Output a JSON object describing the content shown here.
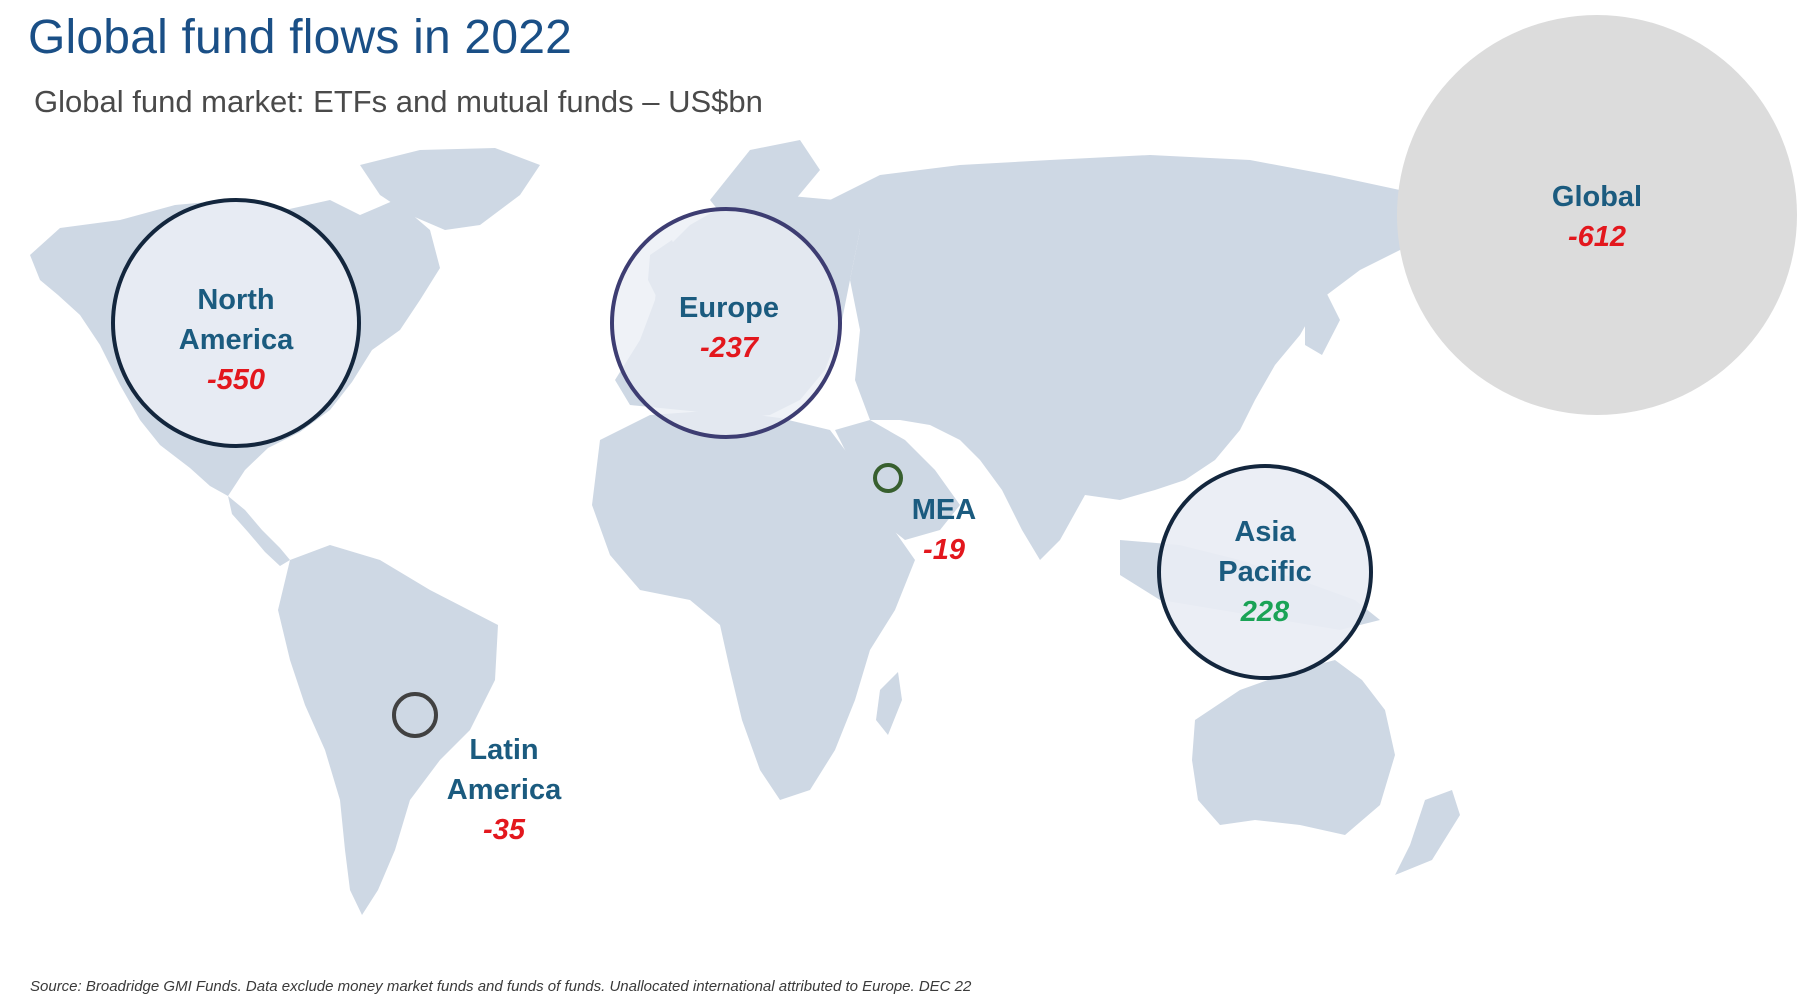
{
  "title": "Global fund flows in 2022",
  "subtitle": "Global fund market: ETFs and mutual funds – US$bn",
  "colors": {
    "title": "#1a4f86",
    "land": "#ced8e4",
    "region_name": "#1b5b7f",
    "negative": "#e3171d",
    "positive": "#1aa356",
    "global_bubble": "#dcdcdc"
  },
  "regions": [
    {
      "name_line1": "North",
      "name_line2": "America",
      "value": "-550"
    },
    {
      "name_line1": "Europe",
      "name_line2": "",
      "value": "-237"
    },
    {
      "name_line1": "MEA",
      "name_line2": "",
      "value": "-19"
    },
    {
      "name_line1": "Asia",
      "name_line2": "Pacific",
      "value": "228"
    },
    {
      "name_line1": "Latin",
      "name_line2": "America",
      "value": "-35"
    }
  ],
  "global": {
    "name": "Global",
    "value": "-612"
  },
  "source": "Source: Broadridge GMI Funds. Data exclude money market funds and funds of funds. Unallocated international attributed to Europe. DEC 22"
}
